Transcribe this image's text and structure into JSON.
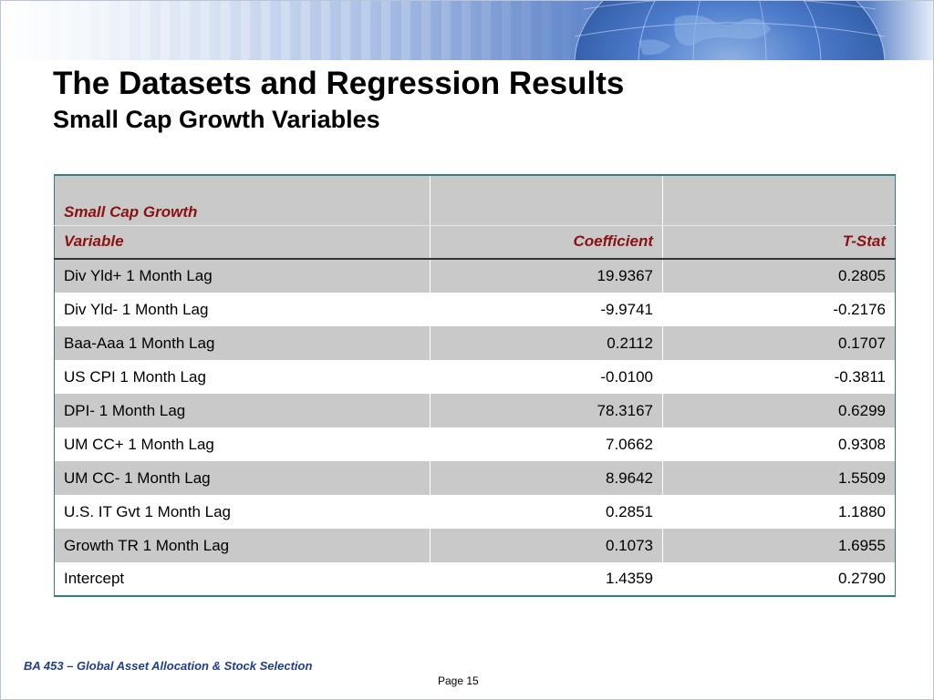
{
  "slide": {
    "title": "The Datasets and Regression Results",
    "subtitle": "Small Cap Growth Variables"
  },
  "table": {
    "group_header": "Small Cap Growth",
    "columns": [
      "Variable",
      "Coefficient",
      "T-Stat"
    ],
    "rows": [
      {
        "variable": "Div Yld+  1 Month Lag",
        "coefficient": "19.9367",
        "tstat": "0.2805"
      },
      {
        "variable": "Div Yld-  1 Month Lag",
        "coefficient": "-9.9741",
        "tstat": "-0.2176"
      },
      {
        "variable": "Baa-Aaa  1 Month Lag",
        "coefficient": "0.2112",
        "tstat": "0.1707"
      },
      {
        "variable": "US CPI  1 Month Lag",
        "coefficient": "-0.0100",
        "tstat": "-0.3811"
      },
      {
        "variable": "DPI-  1 Month Lag",
        "coefficient": "78.3167",
        "tstat": "0.6299"
      },
      {
        "variable": "UM CC+  1 Month Lag",
        "coefficient": "7.0662",
        "tstat": "0.9308"
      },
      {
        "variable": "UM CC-  1 Month Lag",
        "coefficient": "8.9642",
        "tstat": "1.5509"
      },
      {
        "variable": "U.S. IT Gvt  1 Month Lag",
        "coefficient": "0.2851",
        "tstat": "1.1880"
      },
      {
        "variable": "Growth TR 1 Month Lag",
        "coefficient": "0.1073",
        "tstat": "1.6955"
      },
      {
        "variable": "Intercept",
        "coefficient": "1.4359",
        "tstat": "0.2790"
      }
    ]
  },
  "footer": {
    "course": "BA 453 – Global Asset Allocation & Stock Selection",
    "page": "Page 15"
  },
  "colors": {
    "header_text": "#8b1212",
    "table_border": "#2e7f86",
    "row_shade": "#c9c9c9",
    "footer_text": "#1f3c92",
    "banner_blue": "#3b64b1"
  },
  "icons": [
    "globe-banner-graphic"
  ]
}
